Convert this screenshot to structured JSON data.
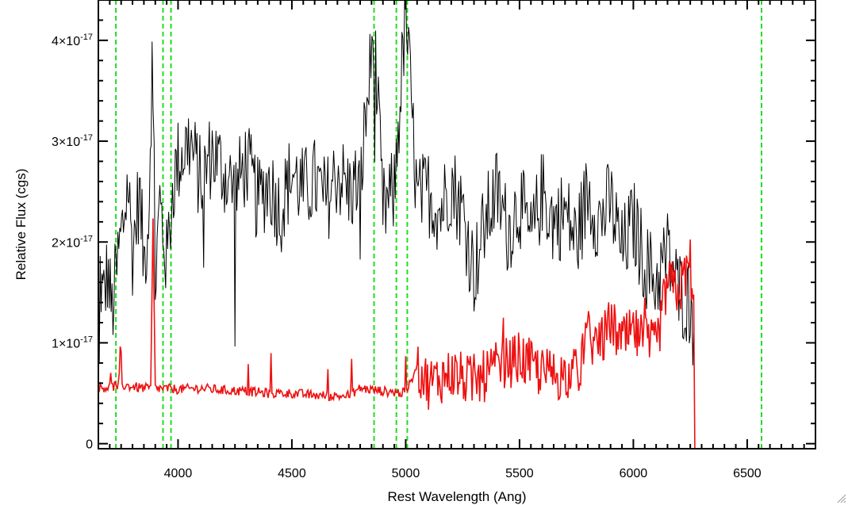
{
  "chart_data": {
    "type": "line",
    "title": "",
    "xlabel": "Rest Wavelength (Ang)",
    "ylabel": "Relative Flux (cgs)",
    "xlim": [
      3650,
      6800
    ],
    "ylim": [
      -5e-19,
      4.4e-17
    ],
    "x_ticks": [
      {
        "value": 4000,
        "label": "4000"
      },
      {
        "value": 4500,
        "label": "4500"
      },
      {
        "value": 5000,
        "label": "5000"
      },
      {
        "value": 5500,
        "label": "5500"
      },
      {
        "value": 6000,
        "label": "6000"
      },
      {
        "value": 6500,
        "label": "6500"
      }
    ],
    "y_ticks": [
      {
        "value": 0,
        "mantissa": "0",
        "exponent": ""
      },
      {
        "value": 1e-17,
        "mantissa": "1×10",
        "exponent": "-17"
      },
      {
        "value": 2e-17,
        "mantissa": "2×10",
        "exponent": "-17"
      },
      {
        "value": 3e-17,
        "mantissa": "3×10",
        "exponent": "-17"
      },
      {
        "value": 4e-17,
        "mantissa": "4×10",
        "exponent": "-17"
      }
    ],
    "reference_lines": {
      "color": "#22dd22",
      "style": "dashed",
      "x": [
        3727,
        3934,
        3969,
        4861,
        4959,
        5007,
        6563
      ]
    },
    "series": [
      {
        "color": "#000000",
        "points": [
          [
            3650,
            1.9e-17
          ],
          [
            3670,
            1.4e-17
          ],
          [
            3690,
            1.7e-17
          ],
          [
            3710,
            1.3e-17
          ],
          [
            3740,
            1.9e-17
          ],
          [
            3760,
            2.2e-17
          ],
          [
            3780,
            2.6e-17
          ],
          [
            3800,
            1.9e-17
          ],
          [
            3830,
            2.5e-17
          ],
          [
            3850,
            1.8e-17
          ],
          [
            3870,
            2.2e-17
          ],
          [
            3890,
            4.2e-17
          ],
          [
            3900,
            1.6e-17
          ],
          [
            3920,
            2.4e-17
          ],
          [
            3950,
            1.8e-17
          ],
          [
            3980,
            2.6e-17
          ],
          [
            4000,
            2.8e-17
          ],
          [
            4050,
            3e-17
          ],
          [
            4100,
            2.6e-17
          ],
          [
            4150,
            2.9e-17
          ],
          [
            4200,
            2.7e-17
          ],
          [
            4250,
            2.5e-17
          ],
          [
            4300,
            2.8e-17
          ],
          [
            4350,
            2.4e-17
          ],
          [
            4400,
            2.6e-17
          ],
          [
            4450,
            2.3e-17
          ],
          [
            4500,
            2.7e-17
          ],
          [
            4550,
            2.5e-17
          ],
          [
            4600,
            2.6e-17
          ],
          [
            4650,
            2.4e-17
          ],
          [
            4700,
            2.7e-17
          ],
          [
            4750,
            2.5e-17
          ],
          [
            4800,
            2.6e-17
          ],
          [
            4860,
            4.1e-17
          ],
          [
            4900,
            2.3e-17
          ],
          [
            4950,
            2.5e-17
          ],
          [
            5000,
            4.3e-17
          ],
          [
            5050,
            2.4e-17
          ],
          [
            5100,
            2.5e-17
          ],
          [
            5150,
            2.3e-17
          ],
          [
            5200,
            2.6e-17
          ],
          [
            5250,
            2.3e-17
          ],
          [
            5300,
            1.7e-17
          ],
          [
            5350,
            2.2e-17
          ],
          [
            5400,
            2.5e-17
          ],
          [
            5450,
            2.1e-17
          ],
          [
            5500,
            2.4e-17
          ],
          [
            5550,
            2e-17
          ],
          [
            5600,
            2.5e-17
          ],
          [
            5650,
            2.2e-17
          ],
          [
            5700,
            2.3e-17
          ],
          [
            5750,
            2e-17
          ],
          [
            5800,
            2.5e-17
          ],
          [
            5850,
            2.2e-17
          ],
          [
            5900,
            2.4e-17
          ],
          [
            5950,
            1.9e-17
          ],
          [
            6000,
            2.2e-17
          ],
          [
            6050,
            1.8e-17
          ],
          [
            6100,
            1.6e-17
          ],
          [
            6150,
            1.9e-17
          ],
          [
            6200,
            1.5e-17
          ],
          [
            6250,
            1.4e-17
          ],
          [
            6265,
            1.1e-17
          ]
        ],
        "noise": 4.5e-18
      },
      {
        "color": "#ee1111",
        "points": [
          [
            3650,
            5.5e-18
          ],
          [
            3750,
            5.8e-18
          ],
          [
            3850,
            5.5e-18
          ],
          [
            3880,
            5.5e-18
          ],
          [
            3890,
            2.2e-17
          ],
          [
            3900,
            5.5e-18
          ],
          [
            4000,
            5.4e-18
          ],
          [
            4100,
            5.5e-18
          ],
          [
            4200,
            5.3e-18
          ],
          [
            4300,
            5.2e-18
          ],
          [
            4400,
            5e-18
          ],
          [
            4500,
            5e-18
          ],
          [
            4600,
            4.8e-18
          ],
          [
            4700,
            4.7e-18
          ],
          [
            4750,
            4.8e-18
          ],
          [
            4800,
            5.5e-18
          ],
          [
            4900,
            5.2e-18
          ],
          [
            5000,
            5e-18
          ],
          [
            5050,
            7.5e-18
          ],
          [
            5100,
            6e-18
          ],
          [
            5200,
            7e-18
          ],
          [
            5300,
            6e-18
          ],
          [
            5400,
            7.5e-18
          ],
          [
            5500,
            8.5e-18
          ],
          [
            5600,
            7e-18
          ],
          [
            5700,
            6.8e-18
          ],
          [
            5760,
            7e-18
          ],
          [
            5790,
            1.1e-17
          ],
          [
            5850,
            9.5e-18
          ],
          [
            5900,
            1.2e-17
          ],
          [
            5950,
            1e-17
          ],
          [
            6000,
            1.1e-17
          ],
          [
            6050,
            1e-17
          ],
          [
            6100,
            9.5e-18
          ],
          [
            6150,
            1.6e-17
          ],
          [
            6200,
            1.5e-17
          ],
          [
            6250,
            1.8e-17
          ],
          [
            6265,
            1.3e-17
          ],
          [
            6270,
            -5e-19
          ],
          [
            6800,
            -5e-19
          ]
        ],
        "noise": 1.2e-18
      }
    ]
  }
}
